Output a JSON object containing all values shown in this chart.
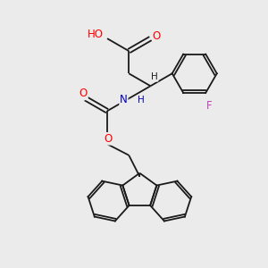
{
  "background_color": "#ebebeb",
  "bond_color": "#1a1a1a",
  "atom_colors": {
    "O": "#ff0000",
    "N": "#0000bb",
    "F": "#bb44bb",
    "C": "#1a1a1a"
  },
  "figsize": [
    3.0,
    3.0
  ],
  "dpi": 100,
  "bond_lw": 1.3,
  "font_size": 8.5,
  "xlim": [
    0,
    10
  ],
  "ylim": [
    0,
    10
  ]
}
